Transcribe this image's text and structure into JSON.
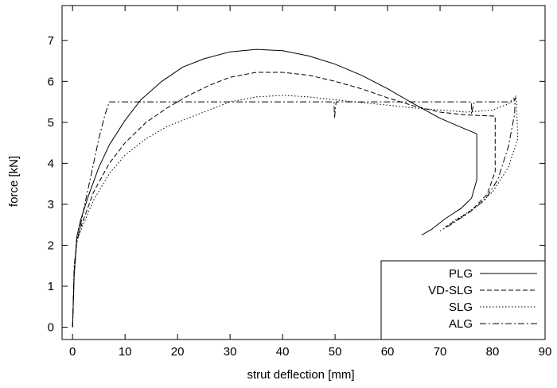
{
  "chart_data": {
    "type": "line",
    "title": "",
    "xlabel": "strut deflection [mm]",
    "ylabel": "force [kN]",
    "xlim": [
      -2,
      90
    ],
    "ylim": [
      -0.3,
      7.85
    ],
    "x_ticks": [
      0,
      10,
      20,
      30,
      40,
      50,
      60,
      70,
      80,
      90
    ],
    "y_ticks": [
      0,
      1,
      2,
      3,
      4,
      5,
      6,
      7
    ],
    "grid": false,
    "legend_position": "bottom-right",
    "series": [
      {
        "name": "PLG",
        "dash": "solid",
        "points": [
          [
            0,
            0
          ],
          [
            0.3,
            1.3
          ],
          [
            0.8,
            2.2
          ],
          [
            1.5,
            2.6
          ],
          [
            3,
            3.2
          ],
          [
            5,
            3.9
          ],
          [
            7,
            4.45
          ],
          [
            10,
            5.05
          ],
          [
            13,
            5.55
          ],
          [
            17,
            6.0
          ],
          [
            21,
            6.35
          ],
          [
            25,
            6.55
          ],
          [
            30,
            6.72
          ],
          [
            35,
            6.78
          ],
          [
            40,
            6.75
          ],
          [
            45,
            6.62
          ],
          [
            50,
            6.42
          ],
          [
            55,
            6.15
          ],
          [
            60,
            5.82
          ],
          [
            65,
            5.45
          ],
          [
            70,
            5.1
          ],
          [
            74,
            4.88
          ],
          [
            77,
            4.72
          ],
          [
            77,
            3.6
          ],
          [
            76,
            3.15
          ],
          [
            74,
            2.9
          ],
          [
            71,
            2.65
          ],
          [
            68.5,
            2.4
          ],
          [
            66.5,
            2.25
          ]
        ]
      },
      {
        "name": "VD-SLG",
        "dash": "dashed",
        "points": [
          [
            0,
            0
          ],
          [
            0.3,
            1.3
          ],
          [
            0.8,
            2.15
          ],
          [
            2,
            2.6
          ],
          [
            4,
            3.3
          ],
          [
            7,
            4.0
          ],
          [
            10,
            4.5
          ],
          [
            14,
            5.0
          ],
          [
            18,
            5.35
          ],
          [
            22,
            5.65
          ],
          [
            26,
            5.9
          ],
          [
            30,
            6.1
          ],
          [
            35,
            6.22
          ],
          [
            40,
            6.22
          ],
          [
            45,
            6.15
          ],
          [
            50,
            6.0
          ],
          [
            55,
            5.82
          ],
          [
            60,
            5.6
          ],
          [
            65,
            5.4
          ],
          [
            70,
            5.25
          ],
          [
            75,
            5.18
          ],
          [
            80.5,
            5.15
          ],
          [
            80.5,
            3.8
          ],
          [
            79,
            3.25
          ],
          [
            76,
            2.85
          ],
          [
            73,
            2.6
          ],
          [
            71,
            2.45
          ]
        ]
      },
      {
        "name": "SLG",
        "dash": "dotted",
        "points": [
          [
            0,
            0
          ],
          [
            0.3,
            1.2
          ],
          [
            0.8,
            2.1
          ],
          [
            2,
            2.5
          ],
          [
            4,
            3.1
          ],
          [
            7,
            3.75
          ],
          [
            10,
            4.2
          ],
          [
            14,
            4.6
          ],
          [
            18,
            4.9
          ],
          [
            22,
            5.1
          ],
          [
            26,
            5.3
          ],
          [
            30,
            5.5
          ],
          [
            35,
            5.62
          ],
          [
            40,
            5.66
          ],
          [
            45,
            5.62
          ],
          [
            50,
            5.55
          ],
          [
            55,
            5.48
          ],
          [
            60,
            5.42
          ],
          [
            65,
            5.35
          ],
          [
            70,
            5.3
          ],
          [
            75,
            5.25
          ],
          [
            80,
            5.3
          ],
          [
            83,
            5.45
          ],
          [
            84.5,
            5.65
          ],
          [
            84.8,
            4.6
          ],
          [
            83,
            3.9
          ],
          [
            80,
            3.3
          ],
          [
            77,
            2.95
          ],
          [
            74,
            2.7
          ],
          [
            72,
            2.55
          ]
        ]
      },
      {
        "name": "ALG",
        "dash": "dashdot",
        "points": [
          [
            0,
            0
          ],
          [
            0.3,
            1.5
          ],
          [
            0.8,
            2.05
          ],
          [
            2,
            2.8
          ],
          [
            3.5,
            3.7
          ],
          [
            5,
            4.6
          ],
          [
            6.2,
            5.2
          ],
          [
            7,
            5.5
          ],
          [
            49.8,
            5.5
          ],
          [
            49.9,
            5.1
          ],
          [
            50.2,
            5.5
          ],
          [
            76,
            5.5
          ],
          [
            76,
            5.2
          ],
          [
            76.5,
            5.5
          ],
          [
            84,
            5.5
          ],
          [
            84.3,
            5.6
          ],
          [
            84.2,
            5.2
          ],
          [
            83,
            4.4
          ],
          [
            81,
            3.6
          ],
          [
            78.5,
            3.1
          ],
          [
            75,
            2.75
          ],
          [
            72,
            2.5
          ],
          [
            70,
            2.35
          ]
        ]
      }
    ]
  }
}
